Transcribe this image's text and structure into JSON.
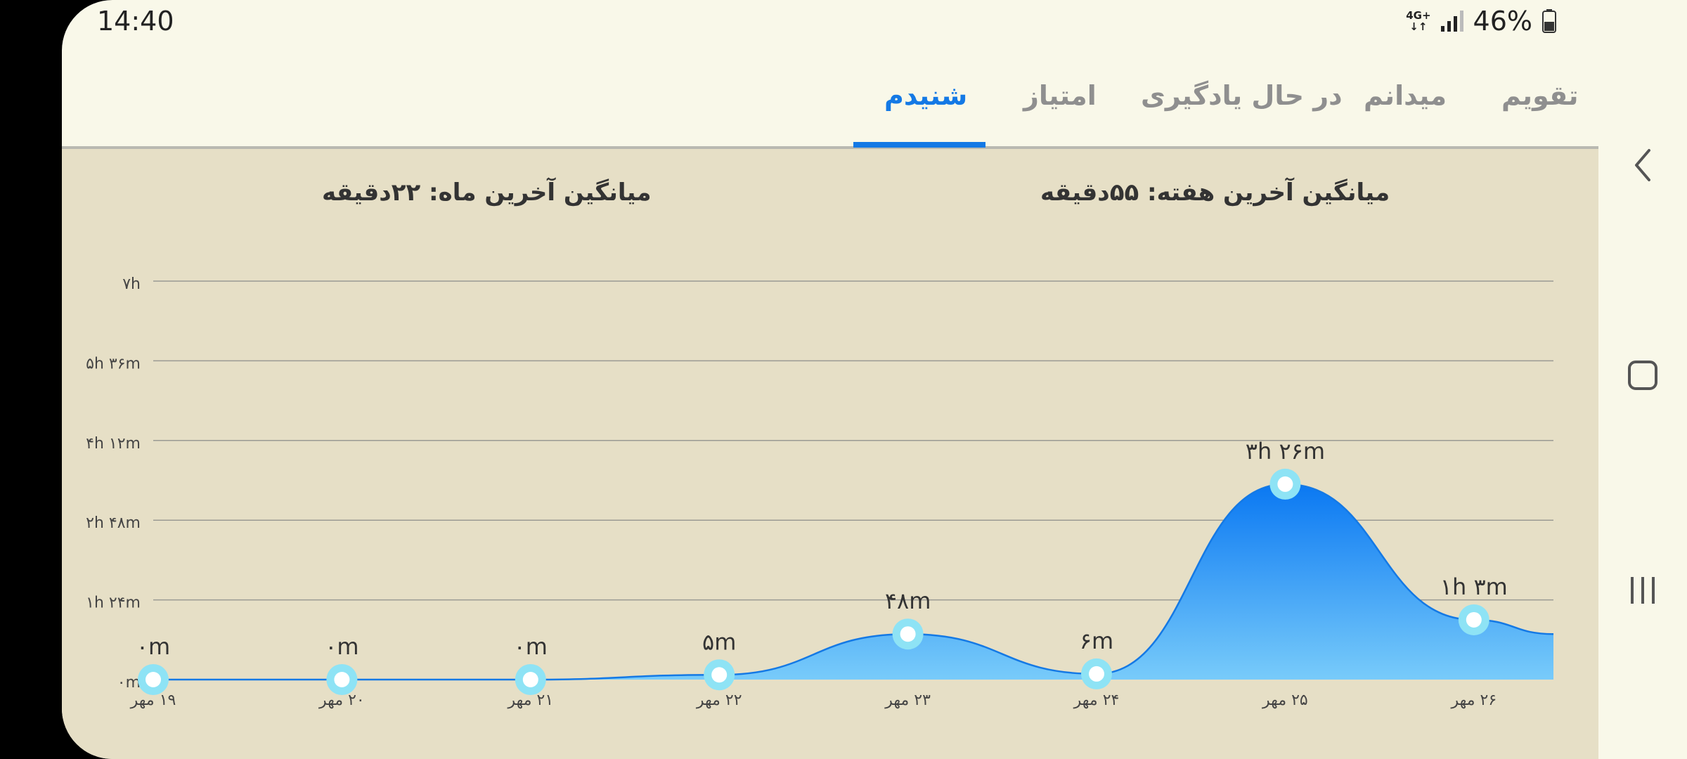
{
  "status": {
    "time": "14:40",
    "network": "4G+",
    "battery": "46%"
  },
  "tabs": [
    {
      "label": "تقویم",
      "active": false
    },
    {
      "label": "میدانم",
      "active": false
    },
    {
      "label": "در حال یادگیری",
      "active": false
    },
    {
      "label": "امتیاز",
      "active": false
    },
    {
      "label": "شنیدم",
      "active": true
    }
  ],
  "averages": {
    "week": "میانگین آخرین هفته: ۵۵دقیقه",
    "month": "میانگین آخرین ماه: ۲۲دقیقه"
  },
  "colors": {
    "accent": "#1479E5",
    "marker": "#8EE3F5",
    "background": "#E6DFC6"
  },
  "chart_data": {
    "type": "area",
    "title": "",
    "xlabel": "",
    "ylabel": "",
    "y_unit": "minutes",
    "ylim": [
      0,
      420
    ],
    "y_ticks": [
      0,
      84,
      168,
      252,
      336,
      420
    ],
    "y_tick_labels": [
      "۰m",
      "۱h ۲۴m",
      "۲h ۴۸m",
      "۴h ۱۲m",
      "۵h ۳۶m",
      "۷h"
    ],
    "categories": [
      "۱۹ مهر",
      "۲۰ مهر",
      "۲۱ مهر",
      "۲۲ مهر",
      "۲۳ مهر",
      "۲۴ مهر",
      "۲۵ مهر",
      "۲۶ مهر"
    ],
    "values": [
      0,
      0,
      0,
      5,
      48,
      6,
      206,
      63
    ],
    "value_labels": [
      "۰m",
      "۰m",
      "۰m",
      "۵m",
      "۴۸m",
      "۶m",
      "۳h ۲۶m",
      "۱h ۳m"
    ],
    "grid": true,
    "legend": "none"
  },
  "nav": {
    "back": "back-icon",
    "home": "home-icon",
    "recents": "recents-icon"
  }
}
